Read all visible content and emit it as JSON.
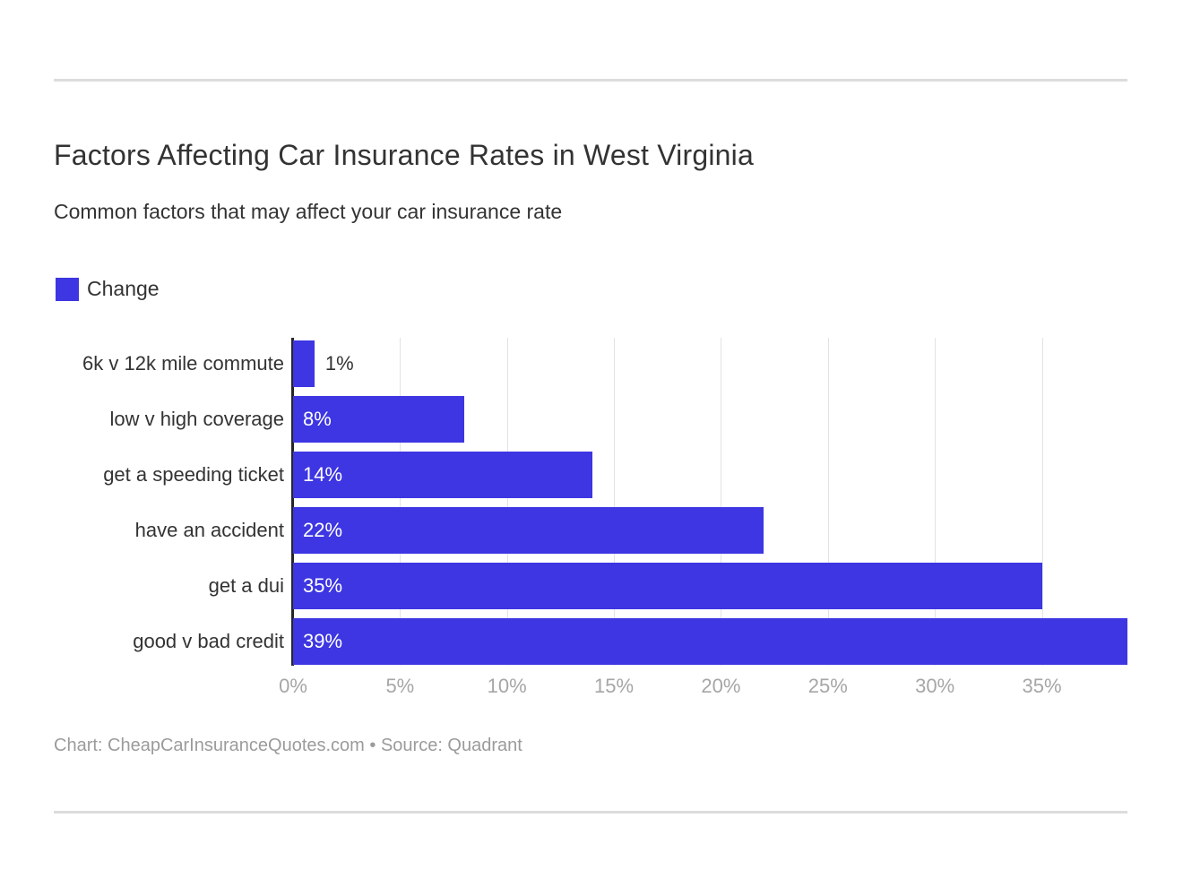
{
  "header": {
    "title": "Factors Affecting Car Insurance Rates in West Virginia",
    "subtitle": "Common factors that may affect your car insurance rate"
  },
  "legend": {
    "label": "Change",
    "swatch_color": "#3D36E2"
  },
  "chart_data": {
    "type": "bar",
    "orientation": "horizontal",
    "title": "Factors Affecting Car Insurance Rates in West Virginia",
    "subtitle": "Common factors that may affect your car insurance rate",
    "series_name": "Change",
    "categories": [
      "6k v 12k mile commute",
      "low v high coverage",
      "get a speeding ticket",
      "have an accident",
      "get a dui",
      "good v bad credit"
    ],
    "values": [
      1,
      8,
      14,
      22,
      35,
      39
    ],
    "value_labels": [
      "1%",
      "8%",
      "14%",
      "22%",
      "35%",
      "39%"
    ],
    "xlabel": "",
    "ylabel": "",
    "xlim": [
      0,
      39
    ],
    "x_ticks": [
      0,
      5,
      10,
      15,
      20,
      25,
      30,
      35
    ],
    "x_tick_labels": [
      "0%",
      "5%",
      "10%",
      "15%",
      "20%",
      "25%",
      "30%",
      "35%"
    ],
    "grid": "vertical-on",
    "legend_position": "top-left",
    "bar_color": "#3D36E2"
  },
  "footer": {
    "text": "Chart: CheapCarInsuranceQuotes.com • Source: Quadrant"
  },
  "colors": {
    "bar": "#3D36E2",
    "axis_line": "#262626",
    "gridline": "#E3E3E3",
    "tick_text": "#A6A6A6",
    "category_text": "#333333",
    "value_inside": "#FFFFFF",
    "value_outside": "#333333",
    "title_text": "#333333",
    "divider": "#DCDCDC",
    "footer_text": "#9B9B9B"
  }
}
